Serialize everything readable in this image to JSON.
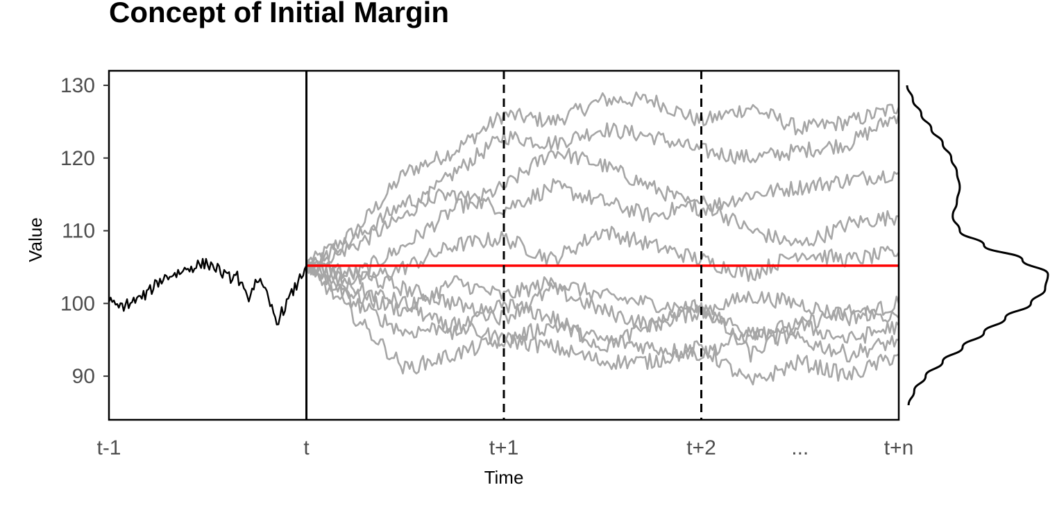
{
  "chart_data": {
    "type": "line",
    "title": "Concept of Initial Margin",
    "xlabel": "Time",
    "ylabel": "Value",
    "ylim": [
      84,
      132
    ],
    "y_ticks": [
      90,
      100,
      110,
      120,
      130
    ],
    "x_ticks": [
      {
        "label": "t-1",
        "value": -1
      },
      {
        "label": "t",
        "value": 0
      },
      {
        "label": "t+1",
        "value": 1
      },
      {
        "label": "t+2",
        "value": 2
      },
      {
        "label": "...",
        "value": 2.5
      },
      {
        "label": "t+n",
        "value": 3
      }
    ],
    "xlim": [
      -1,
      3
    ],
    "vertical_lines": [
      {
        "x": 0,
        "style": "solid"
      },
      {
        "x": 1,
        "style": "dashed"
      },
      {
        "x": 2,
        "style": "dashed"
      }
    ],
    "reference_line": {
      "y": 105.2,
      "color": "#ff0000"
    },
    "history": {
      "color": "#000000",
      "x": [
        -1,
        -0.95,
        -0.9,
        -0.85,
        -0.8,
        -0.75,
        -0.7,
        -0.65,
        -0.6,
        -0.55,
        -0.5,
        -0.45,
        -0.4,
        -0.35,
        -0.3,
        -0.25,
        -0.2,
        -0.15,
        -0.1,
        -0.05,
        0
      ],
      "y": [
        100.2,
        99.5,
        100.0,
        100.6,
        101.5,
        103.0,
        103.8,
        104.2,
        104.8,
        105.3,
        105.5,
        104.8,
        103.5,
        103.8,
        100.5,
        103.5,
        101.0,
        97.5,
        100.0,
        102.5,
        105.2
      ]
    },
    "simulations": {
      "color": "#a6a6a6",
      "x": [
        0,
        0.25,
        0.5,
        0.75,
        1,
        1.25,
        1.5,
        1.75,
        2,
        2.25,
        2.5,
        2.75,
        3
      ],
      "series": [
        {
          "values": [
            105.2,
            110,
            118,
            121,
            126,
            125,
            128,
            128,
            125,
            127,
            124,
            125,
            127
          ]
        },
        {
          "values": [
            105.2,
            108,
            112,
            118,
            123,
            122,
            124,
            123,
            121,
            120,
            121,
            122,
            126
          ]
        },
        {
          "values": [
            105.2,
            104,
            108,
            113,
            116,
            121,
            119,
            116,
            113,
            115,
            116,
            117,
            118
          ]
        },
        {
          "values": [
            105.2,
            109,
            114,
            115,
            113,
            116,
            114,
            112,
            114,
            110,
            108,
            111,
            112
          ]
        },
        {
          "values": [
            105.2,
            103,
            105,
            108,
            109,
            106,
            110,
            108,
            106,
            104,
            107,
            106,
            107
          ]
        },
        {
          "values": [
            105.2,
            101,
            99,
            103,
            101,
            103,
            101,
            100,
            99,
            101,
            100,
            98,
            100
          ]
        },
        {
          "values": [
            105.2,
            104,
            102,
            100,
            98,
            102,
            99,
            97,
            99,
            96,
            97,
            99,
            98
          ]
        },
        {
          "values": [
            105.2,
            100,
            96,
            97,
            95,
            97,
            95,
            94,
            93,
            96,
            95,
            93,
            95
          ]
        },
        {
          "values": [
            105.2,
            98,
            91,
            93,
            95,
            94,
            92,
            92,
            94,
            89,
            92,
            90,
            93
          ]
        },
        {
          "values": [
            105.2,
            102,
            100,
            96,
            100,
            98,
            94,
            97,
            100,
            93,
            97,
            95,
            97
          ]
        }
      ]
    },
    "density_curve": {
      "color": "#000000",
      "y": [
        86,
        88,
        90,
        92,
        94,
        96,
        98,
        100,
        102,
        104,
        106,
        108,
        110,
        112,
        114,
        116,
        118,
        120,
        122,
        124,
        126,
        128,
        130
      ],
      "density": [
        0.02,
        0.06,
        0.14,
        0.26,
        0.4,
        0.55,
        0.7,
        0.88,
        0.98,
        1.0,
        0.82,
        0.55,
        0.38,
        0.33,
        0.36,
        0.38,
        0.36,
        0.32,
        0.26,
        0.18,
        0.11,
        0.05,
        0.01
      ]
    }
  }
}
